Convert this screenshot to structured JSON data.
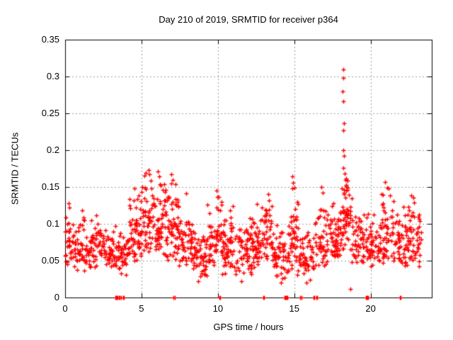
{
  "window": {
    "background": "#ffffff"
  },
  "chart_data": {
    "type": "scatter",
    "title": "Day 210 of 2019, SRMTID for receiver p364",
    "xlabel": "GPS time / hours",
    "ylabel": "SRMTID / TECUs",
    "xlim": [
      0,
      24
    ],
    "ylim": [
      0,
      0.35
    ],
    "xticks": [
      {
        "value": 0,
        "label": "0"
      },
      {
        "value": 5,
        "label": "5"
      },
      {
        "value": 10,
        "label": "10"
      },
      {
        "value": 15,
        "label": "15"
      },
      {
        "value": 20,
        "label": "20"
      }
    ],
    "yticks": [
      {
        "value": 0,
        "label": "0"
      },
      {
        "value": 0.05,
        "label": "0.05"
      },
      {
        "value": 0.1,
        "label": "0.1"
      },
      {
        "value": 0.15,
        "label": "0.15"
      },
      {
        "value": 0.2,
        "label": "0.2"
      },
      {
        "value": 0.25,
        "label": "0.25"
      },
      {
        "value": 0.3,
        "label": "0.3"
      },
      {
        "value": 0.35,
        "label": "0.35"
      }
    ],
    "grid": true,
    "legend": "none",
    "marker": "plus",
    "colors": {
      "marker": "#ff0000",
      "grid": "#9e9e9e",
      "axis": "#000000",
      "text": "#000000",
      "background": "#ffffff"
    },
    "series": [
      {
        "name": "SRMTID",
        "measured_points": [
          [
            0.22,
            0.128
          ],
          [
            0.3,
            0.122
          ],
          [
            1.1,
            0.118
          ],
          [
            2.05,
            0.112
          ],
          [
            4.55,
            0.148
          ],
          [
            5.45,
            0.173
          ],
          [
            5.52,
            0.167
          ],
          [
            5.62,
            0.159
          ],
          [
            6.08,
            0.171
          ],
          [
            6.16,
            0.164
          ],
          [
            6.95,
            0.167
          ],
          [
            7.03,
            0.16
          ],
          [
            7.21,
            0.154
          ],
          [
            7.9,
            0.141
          ],
          [
            9.92,
            0.145
          ],
          [
            10.06,
            0.137
          ],
          [
            11.0,
            0.124
          ],
          [
            12.55,
            0.127
          ],
          [
            13.28,
            0.14
          ],
          [
            13.36,
            0.132
          ],
          [
            14.88,
            0.164
          ],
          [
            14.94,
            0.156
          ],
          [
            15.02,
            0.149
          ],
          [
            16.78,
            0.15
          ],
          [
            16.87,
            0.142
          ],
          [
            17.55,
            0.128
          ],
          [
            18.2,
            0.31
          ],
          [
            18.22,
            0.298
          ],
          [
            18.18,
            0.28
          ],
          [
            18.21,
            0.266
          ],
          [
            18.24,
            0.237
          ],
          [
            18.22,
            0.227
          ],
          [
            18.2,
            0.2
          ],
          [
            18.25,
            0.192
          ],
          [
            18.22,
            0.176
          ],
          [
            18.3,
            0.168
          ],
          [
            18.34,
            0.16
          ],
          [
            18.41,
            0.153
          ],
          [
            18.47,
            0.146
          ],
          [
            18.56,
            0.139
          ],
          [
            18.65,
            0.012
          ],
          [
            20.95,
            0.157
          ],
          [
            21.08,
            0.149
          ],
          [
            21.5,
            0.131
          ],
          [
            22.65,
            0.138
          ],
          [
            22.85,
            0.129
          ],
          [
            8.7,
            0.022
          ],
          [
            11.52,
            0.022
          ],
          [
            14.15,
            0.02
          ],
          [
            15.82,
            0.02
          ],
          [
            16.05,
            0.024
          ]
        ],
        "zero_points_x": [
          3.28,
          3.33,
          3.38,
          3.44,
          3.52,
          3.58,
          3.68,
          3.78,
          3.84,
          7.1,
          7.16,
          10.08,
          10.14,
          12.98,
          13.04,
          14.38,
          14.41,
          14.44,
          14.47,
          14.5,
          14.53,
          15.4,
          15.46,
          16.24,
          16.3,
          16.44,
          16.5,
          19.7,
          19.73,
          19.76,
          19.79,
          19.82,
          19.85,
          21.9,
          21.96
        ],
        "segments_format": "[x_start_hour, x_end_hour, point_count, y_min, y_max, low_bias_exponent]",
        "cloud_segments": [
          [
            0.0,
            0.5,
            28,
            0.04,
            0.13,
            1.4
          ],
          [
            0.5,
            1.5,
            55,
            0.035,
            0.115,
            1.4
          ],
          [
            1.5,
            2.5,
            55,
            0.04,
            0.11,
            1.4
          ],
          [
            2.5,
            3.3,
            45,
            0.035,
            0.1,
            1.4
          ],
          [
            3.3,
            4.2,
            50,
            0.03,
            0.105,
            1.4
          ],
          [
            4.2,
            5.0,
            55,
            0.045,
            0.15,
            1.3
          ],
          [
            5.0,
            5.9,
            60,
            0.05,
            0.175,
            1.35
          ],
          [
            5.9,
            6.6,
            55,
            0.05,
            0.17,
            1.35
          ],
          [
            6.6,
            7.4,
            55,
            0.05,
            0.165,
            1.35
          ],
          [
            7.4,
            8.3,
            55,
            0.04,
            0.14,
            1.4
          ],
          [
            8.3,
            9.3,
            60,
            0.025,
            0.115,
            1.4
          ],
          [
            9.3,
            10.3,
            60,
            0.04,
            0.145,
            1.4
          ],
          [
            10.3,
            11.3,
            60,
            0.03,
            0.12,
            1.4
          ],
          [
            11.3,
            12.2,
            55,
            0.03,
            0.115,
            1.4
          ],
          [
            12.2,
            13.0,
            50,
            0.04,
            0.13,
            1.4
          ],
          [
            13.0,
            13.6,
            40,
            0.045,
            0.145,
            1.35
          ],
          [
            13.6,
            14.6,
            55,
            0.025,
            0.1,
            1.4
          ],
          [
            14.6,
            15.3,
            45,
            0.03,
            0.165,
            1.5
          ],
          [
            15.3,
            16.3,
            55,
            0.025,
            0.095,
            1.4
          ],
          [
            16.3,
            17.2,
            50,
            0.04,
            0.15,
            1.4
          ],
          [
            17.2,
            18.0,
            50,
            0.05,
            0.13,
            1.4
          ],
          [
            18.0,
            18.75,
            60,
            0.06,
            0.17,
            1.2
          ],
          [
            18.75,
            19.6,
            50,
            0.04,
            0.12,
            1.4
          ],
          [
            19.6,
            20.6,
            55,
            0.04,
            0.12,
            1.4
          ],
          [
            20.6,
            21.4,
            50,
            0.045,
            0.16,
            1.4
          ],
          [
            21.4,
            22.3,
            55,
            0.04,
            0.13,
            1.4
          ],
          [
            22.3,
            23.3,
            60,
            0.04,
            0.14,
            1.4
          ]
        ],
        "seed": 42
      }
    ]
  }
}
